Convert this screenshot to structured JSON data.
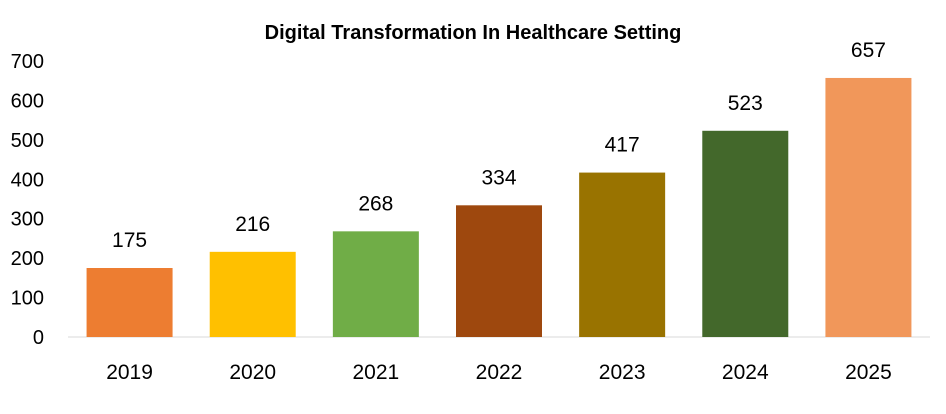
{
  "chart_data": {
    "type": "bar",
    "title": "Digital Transformation  In Healthcare Setting",
    "categories": [
      "2019",
      "2020",
      "2021",
      "2022",
      "2023",
      "2024",
      "2025"
    ],
    "values": [
      175,
      216,
      268,
      334,
      417,
      523,
      657
    ],
    "colors": [
      "#ED7D31",
      "#FFC000",
      "#70AD47",
      "#9E480E",
      "#997300",
      "#43682B",
      "#F1975A"
    ],
    "xlabel": "",
    "ylabel": "",
    "ylim": [
      0,
      700
    ],
    "yticks": [
      0,
      100,
      200,
      300,
      400,
      500,
      600,
      700
    ],
    "data_labels": true,
    "grid": false,
    "legend": "none"
  }
}
